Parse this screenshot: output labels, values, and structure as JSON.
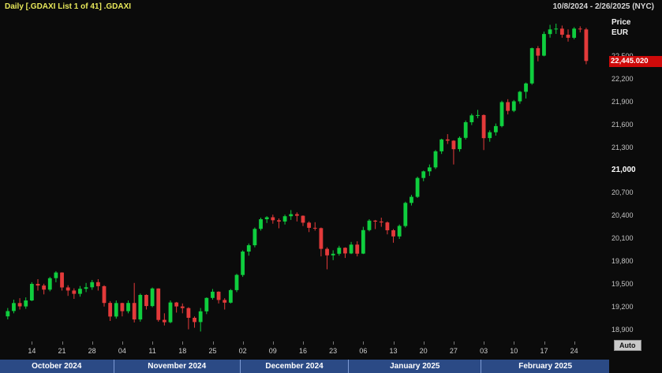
{
  "title_bar": {
    "left": "Daily [.GDAXI List 1 of 41] .GDAXI",
    "right": "10/8/2024 - 2/26/2025 (NYC)"
  },
  "price_axis": {
    "title_line1": "Price",
    "title_line2": "EUR",
    "last_price": "22,445.020",
    "last_price_value": 22445.02,
    "emphasized_tick": 21000
  },
  "x_axis": {
    "week_ticks": [
      "10-14",
      "10-21",
      "10-28",
      "11-04",
      "11-11",
      "11-18",
      "11-25",
      "12-02",
      "12-09",
      "12-16",
      "12-23",
      "01-06",
      "01-13",
      "01-20",
      "01-27",
      "02-03",
      "02-10",
      "02-17",
      "02-24"
    ],
    "months": [
      {
        "key": "10",
        "label": "October 2024"
      },
      {
        "key": "11",
        "label": "November 2024"
      },
      {
        "key": "12",
        "label": "December 2024"
      },
      {
        "key": "01",
        "label": "January 2025"
      },
      {
        "key": "02",
        "label": "February 2025"
      }
    ]
  },
  "controls": {
    "auto_label": "Auto"
  },
  "colors": {
    "up": "#0fce3e",
    "down": "#e33a3a",
    "last_price_bg": "#cf0a0a",
    "month_bar": "#2b4a85",
    "title_text": "#e8e85a"
  },
  "chart_data": {
    "type": "candlestick",
    "title": "Daily [.GDAXI List 1 of 41] .GDAXI",
    "instrument": ".GDAXI",
    "interval": "Daily",
    "currency": "EUR",
    "start": "10/8/2024",
    "end": "2/26/2025",
    "timezone_note": "(NYC)",
    "last_close": 22445.02,
    "ylim": [
      18760,
      23060
    ],
    "y_ticks": [
      22500,
      22200,
      21900,
      21600,
      21300,
      21000,
      20700,
      20400,
      20100,
      19800,
      19500,
      19200,
      18900
    ],
    "columns": [
      "date",
      "open",
      "high",
      "low",
      "close"
    ],
    "candles": [
      [
        "10-08",
        19080,
        19190,
        19040,
        19150
      ],
      [
        "10-09",
        19150,
        19300,
        19120,
        19255
      ],
      [
        "10-10",
        19255,
        19320,
        19170,
        19211
      ],
      [
        "10-11",
        19211,
        19330,
        19180,
        19290
      ],
      [
        "10-14",
        19290,
        19530,
        19280,
        19508
      ],
      [
        "10-15",
        19508,
        19570,
        19420,
        19486
      ],
      [
        "10-16",
        19486,
        19510,
        19370,
        19432
      ],
      [
        "10-17",
        19432,
        19600,
        19410,
        19583
      ],
      [
        "10-18",
        19583,
        19675,
        19530,
        19657
      ],
      [
        "10-21",
        19657,
        19660,
        19420,
        19461
      ],
      [
        "10-22",
        19461,
        19490,
        19350,
        19421
      ],
      [
        "10-23",
        19421,
        19450,
        19310,
        19377
      ],
      [
        "10-24",
        19377,
        19480,
        19340,
        19443
      ],
      [
        "10-25",
        19443,
        19520,
        19400,
        19463
      ],
      [
        "10-28",
        19463,
        19560,
        19430,
        19531
      ],
      [
        "10-29",
        19531,
        19570,
        19420,
        19478
      ],
      [
        "10-30",
        19478,
        19490,
        19210,
        19257
      ],
      [
        "10-31",
        19257,
        19280,
        19020,
        19077
      ],
      [
        "11-01",
        19077,
        19290,
        19050,
        19255
      ],
      [
        "11-04",
        19255,
        19260,
        19080,
        19148
      ],
      [
        "11-05",
        19148,
        19290,
        19120,
        19256
      ],
      [
        "11-06",
        19256,
        19520,
        19000,
        19039
      ],
      [
        "11-07",
        19039,
        19380,
        19010,
        19362
      ],
      [
        "11-08",
        19362,
        19370,
        19170,
        19216
      ],
      [
        "11-11",
        19216,
        19460,
        19200,
        19448
      ],
      [
        "11-12",
        19448,
        19450,
        19010,
        19034
      ],
      [
        "11-13",
        19034,
        19120,
        18960,
        19003
      ],
      [
        "11-14",
        19003,
        19290,
        18990,
        19263
      ],
      [
        "11-15",
        19263,
        19270,
        19130,
        19211
      ],
      [
        "11-18",
        19211,
        19250,
        19120,
        19189
      ],
      [
        "11-19",
        19189,
        19200,
        18910,
        19061
      ],
      [
        "11-20",
        19061,
        19080,
        18930,
        19005
      ],
      [
        "11-21",
        19005,
        19190,
        18880,
        19146
      ],
      [
        "11-22",
        19146,
        19330,
        19110,
        19323
      ],
      [
        "11-25",
        19323,
        19440,
        19300,
        19405
      ],
      [
        "11-26",
        19405,
        19410,
        19250,
        19296
      ],
      [
        "11-27",
        19296,
        19320,
        19170,
        19261
      ],
      [
        "11-28",
        19261,
        19440,
        19250,
        19426
      ],
      [
        "11-29",
        19426,
        19640,
        19400,
        19626
      ],
      [
        "12-02",
        19626,
        19950,
        19600,
        19934
      ],
      [
        "12-03",
        19934,
        20040,
        19880,
        20017
      ],
      [
        "12-04",
        20017,
        20250,
        19990,
        20232
      ],
      [
        "12-05",
        20232,
        20380,
        20210,
        20359
      ],
      [
        "12-06",
        20359,
        20400,
        20310,
        20385
      ],
      [
        "12-09",
        20385,
        20420,
        20300,
        20346
      ],
      [
        "12-10",
        20346,
        20370,
        20240,
        20329
      ],
      [
        "12-11",
        20329,
        20420,
        20290,
        20399
      ],
      [
        "12-12",
        20399,
        20480,
        20350,
        20426
      ],
      [
        "12-13",
        20426,
        20450,
        20330,
        20405
      ],
      [
        "12-16",
        20405,
        20410,
        20270,
        20314
      ],
      [
        "12-17",
        20314,
        20330,
        20190,
        20246
      ],
      [
        "12-18",
        20246,
        20320,
        20210,
        20242
      ],
      [
        "12-19",
        20242,
        20250,
        19870,
        19969
      ],
      [
        "12-20",
        19969,
        19990,
        19700,
        19884
      ],
      [
        "12-23",
        19884,
        19950,
        19820,
        19905
      ],
      [
        "12-27",
        19905,
        20010,
        19880,
        19984
      ],
      [
        "12-30",
        19984,
        19990,
        19850,
        19909
      ],
      [
        "01-02",
        19909,
        20060,
        19900,
        20025
      ],
      [
        "01-03",
        20025,
        20070,
        19870,
        19906
      ],
      [
        "01-06",
        19906,
        20260,
        19900,
        20216
      ],
      [
        "01-07",
        20216,
        20360,
        20200,
        20341
      ],
      [
        "01-08",
        20341,
        20350,
        20230,
        20329
      ],
      [
        "01-09",
        20329,
        20380,
        20260,
        20317
      ],
      [
        "01-10",
        20317,
        20330,
        20160,
        20214
      ],
      [
        "01-13",
        20214,
        20230,
        20050,
        20133
      ],
      [
        "01-14",
        20133,
        20290,
        20100,
        20271
      ],
      [
        "01-15",
        20271,
        20590,
        20250,
        20575
      ],
      [
        "01-16",
        20575,
        20680,
        20540,
        20655
      ],
      [
        "01-17",
        20655,
        20920,
        20640,
        20903
      ],
      [
        "01-20",
        20903,
        21000,
        20860,
        20990
      ],
      [
        "01-21",
        20990,
        21080,
        20930,
        21042
      ],
      [
        "01-22",
        21042,
        21270,
        21020,
        21254
      ],
      [
        "01-23",
        21254,
        21420,
        21220,
        21411
      ],
      [
        "01-24",
        21411,
        21480,
        21350,
        21394
      ],
      [
        "01-27",
        21394,
        21400,
        21080,
        21282
      ],
      [
        "01-28",
        21282,
        21450,
        21250,
        21431
      ],
      [
        "01-29",
        21431,
        21660,
        21410,
        21637
      ],
      [
        "01-30",
        21637,
        21750,
        21600,
        21727
      ],
      [
        "01-31",
        21727,
        21800,
        21690,
        21732
      ],
      [
        "02-03",
        21732,
        21740,
        21270,
        21428
      ],
      [
        "02-04",
        21428,
        21530,
        21380,
        21505
      ],
      [
        "02-05",
        21505,
        21620,
        21460,
        21586
      ],
      [
        "02-06",
        21586,
        21920,
        21570,
        21902
      ],
      [
        "02-07",
        21902,
        21940,
        21740,
        21787
      ],
      [
        "02-10",
        21787,
        21930,
        21770,
        21912
      ],
      [
        "02-11",
        21912,
        22050,
        21880,
        22038
      ],
      [
        "02-12",
        22038,
        22160,
        21950,
        22148
      ],
      [
        "02-13",
        22148,
        22620,
        22130,
        22612
      ],
      [
        "02-14",
        22612,
        22640,
        22440,
        22513
      ],
      [
        "02-17",
        22513,
        22830,
        22505,
        22799
      ],
      [
        "02-18",
        22799,
        22920,
        22750,
        22860
      ],
      [
        "02-19",
        22860,
        22935,
        22800,
        22870
      ],
      [
        "02-20",
        22870,
        22910,
        22750,
        22790
      ],
      [
        "02-21",
        22790,
        22860,
        22700,
        22750
      ],
      [
        "02-24",
        22750,
        22890,
        22730,
        22870
      ],
      [
        "02-25",
        22870,
        22900,
        22820,
        22860
      ],
      [
        "02-26",
        22860,
        22880,
        22400,
        22445
      ]
    ]
  }
}
